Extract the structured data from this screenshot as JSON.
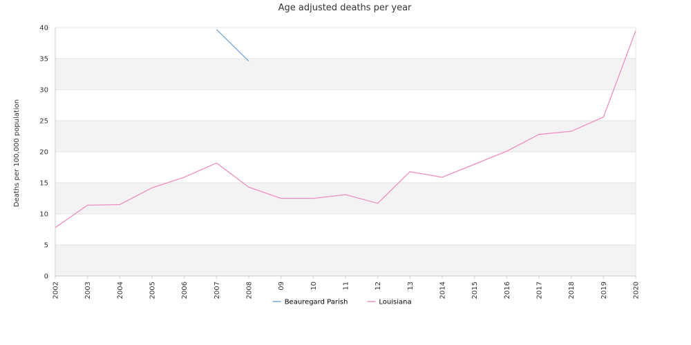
{
  "chart_data": {
    "type": "line",
    "title": "Age adjusted deaths per year",
    "xlabel": "",
    "ylabel": "Deaths per 100,000 population",
    "categories": [
      "2002",
      "2003",
      "2004",
      "2005",
      "2006",
      "2007",
      "2008",
      "09",
      "10",
      "11",
      "12",
      "13",
      "2014",
      "2015",
      "2016",
      "2017",
      "2018",
      "2019",
      "2020"
    ],
    "ylim": [
      0,
      40
    ],
    "yticks": [
      0,
      5,
      10,
      15,
      20,
      25,
      30,
      35,
      40
    ],
    "grid": true,
    "legend_position": "bottom",
    "series": [
      {
        "name": "Beauregard Parish",
        "color": "#6fa8dc",
        "values": [
          null,
          null,
          null,
          null,
          null,
          39.7,
          34.6,
          null,
          null,
          null,
          null,
          null,
          null,
          null,
          null,
          null,
          null,
          null,
          null
        ]
      },
      {
        "name": "Louisiana",
        "color": "#f08cc0",
        "values": [
          7.8,
          11.4,
          11.5,
          14.2,
          15.9,
          18.2,
          14.3,
          12.5,
          12.5,
          13.1,
          11.7,
          16.8,
          15.9,
          18.0,
          20.1,
          22.8,
          23.3,
          25.6,
          39.5
        ]
      }
    ]
  }
}
